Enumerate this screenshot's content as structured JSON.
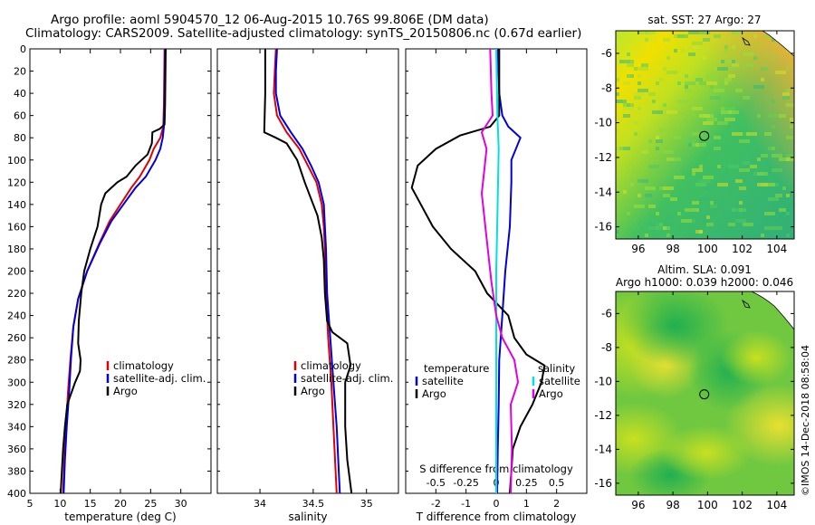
{
  "header": {
    "title_line1": "Argo profile: aoml 5904570_12 06-Aug-2015 10.76S 99.806E (DM data)",
    "title_line2": "Climatology: CARS2009. Satellite-adjusted climatology: synTS_20150806.nc (0.67d earlier)"
  },
  "stamp": "©IMOS 14-Dec-2018 08:58:04",
  "colors": {
    "climatology": "#e00000",
    "satellite": "#0000dd",
    "argo": "#000000",
    "satellite_diff": "#00e0e0",
    "argo_diff": "#e000e0"
  },
  "chart_data": [
    {
      "id": "temperature",
      "type": "line",
      "xlabel": "temperature (deg C)",
      "ylabel": "",
      "xlim": [
        5,
        35
      ],
      "ylim": [
        400,
        0
      ],
      "xticks": [
        5,
        10,
        15,
        20,
        25,
        30
      ],
      "yticks": [
        0,
        20,
        40,
        60,
        80,
        100,
        120,
        140,
        160,
        180,
        200,
        220,
        240,
        260,
        280,
        300,
        320,
        340,
        360,
        380,
        400
      ],
      "legend": [
        "climatology",
        "satellite-adj. clim.",
        "Argo"
      ],
      "series": [
        {
          "name": "climatology",
          "color": "#e00000",
          "points": [
            [
              27.3,
              0
            ],
            [
              27.2,
              50
            ],
            [
              27.1,
              70
            ],
            [
              26.6,
              80
            ],
            [
              25.5,
              90
            ],
            [
              24.8,
              100
            ],
            [
              23.2,
              115
            ],
            [
              21.8,
              125
            ],
            [
              20,
              140
            ],
            [
              18.2,
              155
            ],
            [
              16.5,
              175
            ],
            [
              14.5,
              200
            ],
            [
              13,
              225
            ],
            [
              12.2,
              250
            ],
            [
              11.7,
              280
            ],
            [
              11.3,
              310
            ],
            [
              11,
              340
            ],
            [
              10.7,
              370
            ],
            [
              10.5,
              400
            ]
          ]
        },
        {
          "name": "satellite-adj. clim.",
          "color": "#0000dd",
          "points": [
            [
              27.4,
              0
            ],
            [
              27.3,
              50
            ],
            [
              27.2,
              70
            ],
            [
              27,
              80
            ],
            [
              26.6,
              90
            ],
            [
              25.8,
              100
            ],
            [
              24.2,
              115
            ],
            [
              22.5,
              125
            ],
            [
              20.5,
              140
            ],
            [
              18.5,
              155
            ],
            [
              16.6,
              175
            ],
            [
              14.5,
              200
            ],
            [
              13,
              225
            ],
            [
              12.2,
              250
            ],
            [
              11.8,
              280
            ],
            [
              11.5,
              310
            ],
            [
              11.1,
              340
            ],
            [
              10.8,
              370
            ],
            [
              10.6,
              400
            ]
          ]
        },
        {
          "name": "Argo",
          "color": "#000000",
          "points": [
            [
              27.5,
              0
            ],
            [
              27.4,
              50
            ],
            [
              27.3,
              68
            ],
            [
              26.5,
              72
            ],
            [
              25.3,
              75
            ],
            [
              25.2,
              85
            ],
            [
              24.5,
              95
            ],
            [
              23.5,
              100
            ],
            [
              22.5,
              105
            ],
            [
              21,
              115
            ],
            [
              19.5,
              120
            ],
            [
              18.5,
              125
            ],
            [
              17.5,
              130
            ],
            [
              16.8,
              140
            ],
            [
              16.2,
              160
            ],
            [
              15,
              180
            ],
            [
              14,
              200
            ],
            [
              13.5,
              220
            ],
            [
              13.1,
              245
            ],
            [
              13,
              265
            ],
            [
              13.4,
              280
            ],
            [
              13.3,
              290
            ],
            [
              12.5,
              300
            ],
            [
              11.2,
              320
            ],
            [
              10.8,
              340
            ],
            [
              10.5,
              360
            ],
            [
              10.3,
              380
            ],
            [
              10.1,
              400
            ]
          ]
        }
      ]
    },
    {
      "id": "salinity",
      "type": "line",
      "xlabel": "salinity",
      "xlim": [
        33.6,
        35.3
      ],
      "ylim": [
        400,
        0
      ],
      "xticks": [
        34,
        34.5,
        35
      ],
      "xticklabels": [
        "34",
        "34.5",
        "35"
      ],
      "legend": [
        "climatology",
        "satellite-adj. clim.",
        "Argo"
      ],
      "series": [
        {
          "name": "climatology",
          "color": "#e00000",
          "points": [
            [
              34.15,
              0
            ],
            [
              34.14,
              20
            ],
            [
              34.13,
              40
            ],
            [
              34.16,
              60
            ],
            [
              34.25,
              75
            ],
            [
              34.37,
              90
            ],
            [
              34.45,
              105
            ],
            [
              34.53,
              120
            ],
            [
              34.58,
              140
            ],
            [
              34.6,
              160
            ],
            [
              34.61,
              180
            ],
            [
              34.62,
              220
            ],
            [
              34.64,
              260
            ],
            [
              34.67,
              300
            ],
            [
              34.69,
              340
            ],
            [
              34.71,
              380
            ],
            [
              34.72,
              400
            ]
          ]
        },
        {
          "name": "satellite-adj. clim.",
          "color": "#0000dd",
          "points": [
            [
              34.16,
              0
            ],
            [
              34.15,
              20
            ],
            [
              34.15,
              40
            ],
            [
              34.19,
              60
            ],
            [
              34.29,
              75
            ],
            [
              34.4,
              90
            ],
            [
              34.48,
              105
            ],
            [
              34.55,
              120
            ],
            [
              34.6,
              140
            ],
            [
              34.61,
              160
            ],
            [
              34.62,
              180
            ],
            [
              34.63,
              220
            ],
            [
              34.66,
              260
            ],
            [
              34.69,
              300
            ],
            [
              34.72,
              340
            ],
            [
              34.74,
              380
            ],
            [
              34.75,
              400
            ]
          ]
        },
        {
          "name": "Argo",
          "color": "#000000",
          "points": [
            [
              34.05,
              0
            ],
            [
              34.05,
              40
            ],
            [
              34.04,
              75
            ],
            [
              34.15,
              80
            ],
            [
              34.25,
              85
            ],
            [
              34.35,
              100
            ],
            [
              34.42,
              120
            ],
            [
              34.48,
              135
            ],
            [
              34.54,
              150
            ],
            [
              34.58,
              170
            ],
            [
              34.6,
              190
            ],
            [
              34.61,
              220
            ],
            [
              34.63,
              245
            ],
            [
              34.68,
              255
            ],
            [
              34.82,
              265
            ],
            [
              34.85,
              285
            ],
            [
              34.8,
              300
            ],
            [
              34.8,
              340
            ],
            [
              34.82,
              370
            ],
            [
              34.86,
              400
            ]
          ]
        }
      ]
    },
    {
      "id": "difference",
      "type": "line",
      "xlabel": "T difference from climatology",
      "top_xlabel": "S difference from climatology",
      "xlim": [
        -3,
        3
      ],
      "top_xlim": [
        -0.75,
        0.75
      ],
      "ylim": [
        400,
        0
      ],
      "xticks": [
        -2,
        -1,
        0,
        1,
        2
      ],
      "xticklabels": [
        "-2",
        "-1",
        "0",
        "1",
        "2"
      ],
      "top_xticks": [
        -0.5,
        -0.25,
        0,
        0.25,
        0.5
      ],
      "top_xticklabels": [
        "-0.5",
        "-0.25",
        "0",
        "0.25",
        "0.5"
      ],
      "legend_left_title": "temperature",
      "legend_right_title": "salinity",
      "legend": [
        "satellite",
        "Argo",
        "satellite",
        "Argo"
      ],
      "series": [
        {
          "name": "temperature satellite",
          "axis": "T",
          "color": "#0000dd",
          "points": [
            [
              0.05,
              0
            ],
            [
              0.1,
              40
            ],
            [
              0.2,
              60
            ],
            [
              0.4,
              70
            ],
            [
              0.8,
              80
            ],
            [
              0.5,
              100
            ],
            [
              0.5,
              120
            ],
            [
              0.45,
              160
            ],
            [
              0.3,
              200
            ],
            [
              0.2,
              240
            ],
            [
              0.1,
              280
            ],
            [
              0.08,
              320
            ],
            [
              0.05,
              360
            ],
            [
              0.03,
              400
            ]
          ]
        },
        {
          "name": "temperature Argo",
          "axis": "T",
          "color": "#000000",
          "points": [
            [
              0.1,
              0
            ],
            [
              0.1,
              60
            ],
            [
              -0.2,
              70
            ],
            [
              -1.2,
              78
            ],
            [
              -2,
              90
            ],
            [
              -2.6,
              105
            ],
            [
              -2.8,
              125
            ],
            [
              -2.5,
              140
            ],
            [
              -2.1,
              160
            ],
            [
              -1.5,
              180
            ],
            [
              -0.7,
              200
            ],
            [
              -0.3,
              220
            ],
            [
              0.4,
              240
            ],
            [
              0.6,
              260
            ],
            [
              1,
              275
            ],
            [
              1.6,
              285
            ],
            [
              1.5,
              300
            ],
            [
              1.2,
              320
            ],
            [
              0.8,
              340
            ],
            [
              0.55,
              360
            ],
            [
              0.5,
              380
            ],
            [
              0.45,
              400
            ]
          ]
        },
        {
          "name": "salinity satellite",
          "axis": "S",
          "color": "#00e0e0",
          "points": [
            [
              0,
              0
            ],
            [
              0.01,
              60
            ],
            [
              0.02,
              90
            ],
            [
              0.01,
              150
            ],
            [
              0,
              200
            ],
            [
              0,
              250
            ],
            [
              0,
              300
            ],
            [
              0,
              350
            ],
            [
              0,
              400
            ]
          ]
        },
        {
          "name": "salinity Argo",
          "axis": "S",
          "color": "#e000e0",
          "points": [
            [
              -0.05,
              0
            ],
            [
              -0.04,
              40
            ],
            [
              -0.03,
              60
            ],
            [
              -0.12,
              75
            ],
            [
              -0.08,
              90
            ],
            [
              -0.1,
              110
            ],
            [
              -0.12,
              130
            ],
            [
              -0.08,
              170
            ],
            [
              -0.04,
              210
            ],
            [
              0,
              240
            ],
            [
              0.05,
              260
            ],
            [
              0.15,
              280
            ],
            [
              0.18,
              300
            ],
            [
              0.12,
              320
            ],
            [
              0.13,
              360
            ],
            [
              0.12,
              400
            ]
          ]
        }
      ]
    },
    {
      "id": "sst_map",
      "type": "heatmap",
      "title": "sat. SST: 27 Argo: 27",
      "xlim": [
        94.7,
        105
      ],
      "ylim": [
        -16.7,
        -4.7
      ],
      "xticks": [
        96,
        98,
        100,
        102,
        104
      ],
      "yticks": [
        -6,
        -8,
        -10,
        -12,
        -14,
        -16
      ],
      "argo_position": [
        99.806,
        -10.76
      ]
    },
    {
      "id": "sla_map",
      "type": "heatmap",
      "title": "Altim. SLA: 0.091",
      "subtitle": "Argo h1000: 0.039 h2000: 0.046",
      "xlim": [
        94.7,
        105
      ],
      "ylim": [
        -16.7,
        -4.7
      ],
      "xticks": [
        96,
        98,
        100,
        102,
        104
      ],
      "yticks": [
        -6,
        -8,
        -10,
        -12,
        -14,
        -16
      ],
      "argo_position": [
        99.806,
        -10.76
      ]
    }
  ]
}
